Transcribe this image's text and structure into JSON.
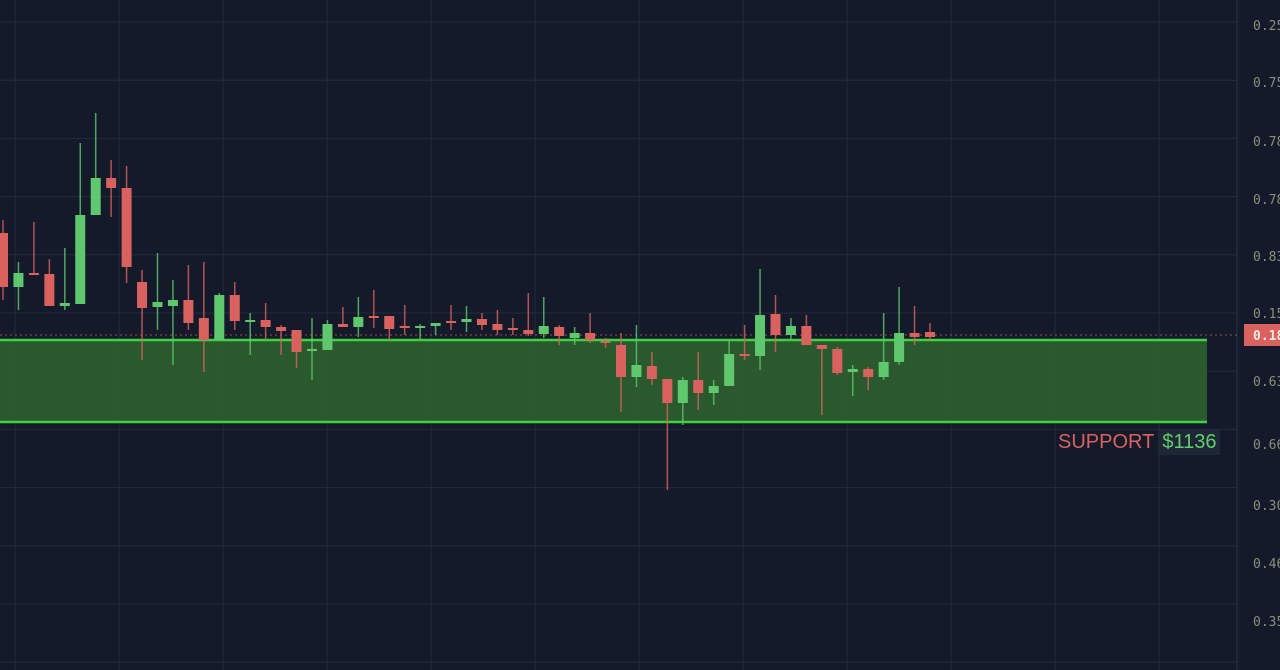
{
  "chart_data": {
    "type": "candlestick",
    "ylim": [
      1012,
      1347
    ],
    "grid": true,
    "colors": {
      "up": "#5fc86e",
      "down": "#d9625f",
      "background": "#141a2a",
      "zone_fill": "#2e5e2f",
      "zone_line": "#3fd23f",
      "price_line": "#d9625f"
    },
    "axis_labels": [
      "0.25",
      "0.75",
      "0.78",
      "0.78",
      "0.83",
      "0.15",
      "0.63",
      "0.66",
      "0.30",
      "0.46",
      "0.35"
    ],
    "current_price_label": "0.18",
    "current_price": 1179.5,
    "support_zone": {
      "top": 1177,
      "bottom": 1136
    },
    "support_label": "SUPPORT",
    "support_value": "$1136",
    "candles": [
      [
        1230.5,
        1237,
        1197,
        1203.5
      ],
      [
        1203.5,
        1216,
        1192,
        1210.5
      ],
      [
        1210.5,
        1236,
        1209.5,
        1209.5
      ],
      [
        1210,
        1217.5,
        1194,
        1194
      ],
      [
        1194,
        1223,
        1192,
        1195.5
      ],
      [
        1195,
        1275.5,
        1195,
        1239.5
      ],
      [
        1239.5,
        1290.5,
        1239.5,
        1258
      ],
      [
        1258,
        1267,
        1238.5,
        1253
      ],
      [
        1253,
        1264,
        1205.5,
        1213.5
      ],
      [
        1206,
        1212,
        1167,
        1193
      ],
      [
        1193.5,
        1220.5,
        1182,
        1196
      ],
      [
        1194,
        1207,
        1164.5,
        1197
      ],
      [
        1197,
        1214.5,
        1182,
        1185.5
      ],
      [
        1188,
        1216,
        1161,
        1177
      ],
      [
        1177,
        1200.5,
        1177,
        1199.5
      ],
      [
        1199.5,
        1206,
        1182,
        1186.5
      ],
      [
        1186,
        1190.5,
        1169.5,
        1187
      ],
      [
        1187,
        1195.5,
        1177,
        1183.5
      ],
      [
        1183.5,
        1184.5,
        1169.5,
        1181.5
      ],
      [
        1182,
        1182,
        1163,
        1171
      ],
      [
        1171.5,
        1188,
        1157,
        1172.5
      ],
      [
        1172,
        1187,
        1172,
        1185
      ],
      [
        1185,
        1193.5,
        1183.5,
        1183.5
      ],
      [
        1183.5,
        1198.5,
        1178.5,
        1188.5
      ],
      [
        1189,
        1202,
        1183,
        1188
      ],
      [
        1189,
        1189,
        1177,
        1182.5
      ],
      [
        1184,
        1194.5,
        1179.5,
        1183
      ],
      [
        1183,
        1185,
        1177,
        1184
      ],
      [
        1184,
        1185.5,
        1179.5,
        1185.5
      ],
      [
        1186.5,
        1194.5,
        1182,
        1185.5
      ],
      [
        1186,
        1194,
        1181,
        1187.5
      ],
      [
        1187.5,
        1190.5,
        1182,
        1184.5
      ],
      [
        1185,
        1192,
        1179.5,
        1182
      ],
      [
        1183,
        1188,
        1179.5,
        1182
      ],
      [
        1182,
        1200.5,
        1179,
        1180
      ],
      [
        1180,
        1198.5,
        1178,
        1184
      ],
      [
        1183.5,
        1184.5,
        1174.5,
        1179
      ],
      [
        1178,
        1183.5,
        1174.5,
        1180.5
      ],
      [
        1180.5,
        1190.5,
        1175.5,
        1177
      ],
      [
        1176.5,
        1178,
        1173,
        1175.5
      ],
      [
        1174.5,
        1180.5,
        1141,
        1158.5
      ],
      [
        1158.5,
        1184.5,
        1153.5,
        1164.5
      ],
      [
        1164,
        1171,
        1154.5,
        1157.5
      ],
      [
        1157.5,
        1157.5,
        1102,
        1145.5
      ],
      [
        1145.5,
        1158.5,
        1134.5,
        1157
      ],
      [
        1157,
        1171,
        1142,
        1150.5
      ],
      [
        1150.5,
        1157,
        1144.5,
        1154
      ],
      [
        1154,
        1177,
        1154,
        1170
      ],
      [
        1170,
        1184.5,
        1167,
        1169
      ],
      [
        1169,
        1212.5,
        1162,
        1189.5
      ],
      [
        1190,
        1199.5,
        1171,
        1179.5
      ],
      [
        1179.5,
        1188,
        1177,
        1184
      ],
      [
        1184,
        1189.5,
        1174.5,
        1174.5
      ],
      [
        1174.5,
        1174.5,
        1139.5,
        1172.5
      ],
      [
        1172.5,
        1173.5,
        1159.5,
        1160.5
      ],
      [
        1161,
        1164.5,
        1149,
        1162.5
      ],
      [
        1162.5,
        1163.5,
        1152,
        1158.5
      ],
      [
        1158.5,
        1190.5,
        1157,
        1166
      ],
      [
        1166,
        1203.5,
        1164.5,
        1180.5
      ],
      [
        1180.5,
        1194,
        1174.5,
        1178.5
      ],
      [
        1181,
        1185.5,
        1177,
        1178.5
      ]
    ]
  }
}
